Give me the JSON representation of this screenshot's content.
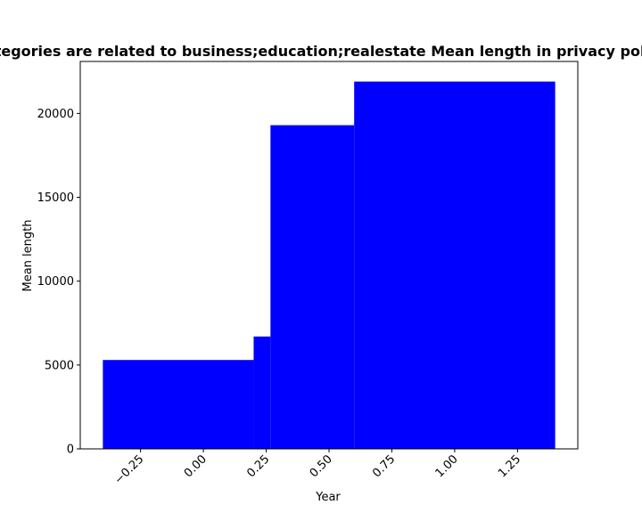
{
  "chart_data": {
    "type": "bar",
    "title": "Categories are related to business;education;realestate Mean length in privacy policy",
    "xlabel": "Year",
    "ylabel": "Mean length",
    "xlim": [
      -0.49,
      1.49
    ],
    "ylim": [
      0,
      23100
    ],
    "bars": [
      {
        "x0": -0.4,
        "x1": 0.2,
        "value": 5300
      },
      {
        "x0": 0.2,
        "x1": 0.267,
        "value": 6700
      },
      {
        "x0": 0.267,
        "x1": 0.6,
        "value": 19300
      },
      {
        "x0": 0.6,
        "x1": 1.4,
        "value": 21900
      }
    ],
    "x_ticks": [
      {
        "value": -0.25,
        "label": "−0.25"
      },
      {
        "value": 0.0,
        "label": "0.00"
      },
      {
        "value": 0.25,
        "label": "0.25"
      },
      {
        "value": 0.5,
        "label": "0.50"
      },
      {
        "value": 0.75,
        "label": "0.75"
      },
      {
        "value": 1.0,
        "label": "1.00"
      },
      {
        "value": 1.25,
        "label": "1.25"
      }
    ],
    "y_ticks": [
      {
        "value": 0,
        "label": "0"
      },
      {
        "value": 5000,
        "label": "5000"
      },
      {
        "value": 10000,
        "label": "10000"
      },
      {
        "value": 15000,
        "label": "15000"
      },
      {
        "value": 20000,
        "label": "20000"
      }
    ],
    "bar_color": "#0000ff",
    "grid": false
  }
}
